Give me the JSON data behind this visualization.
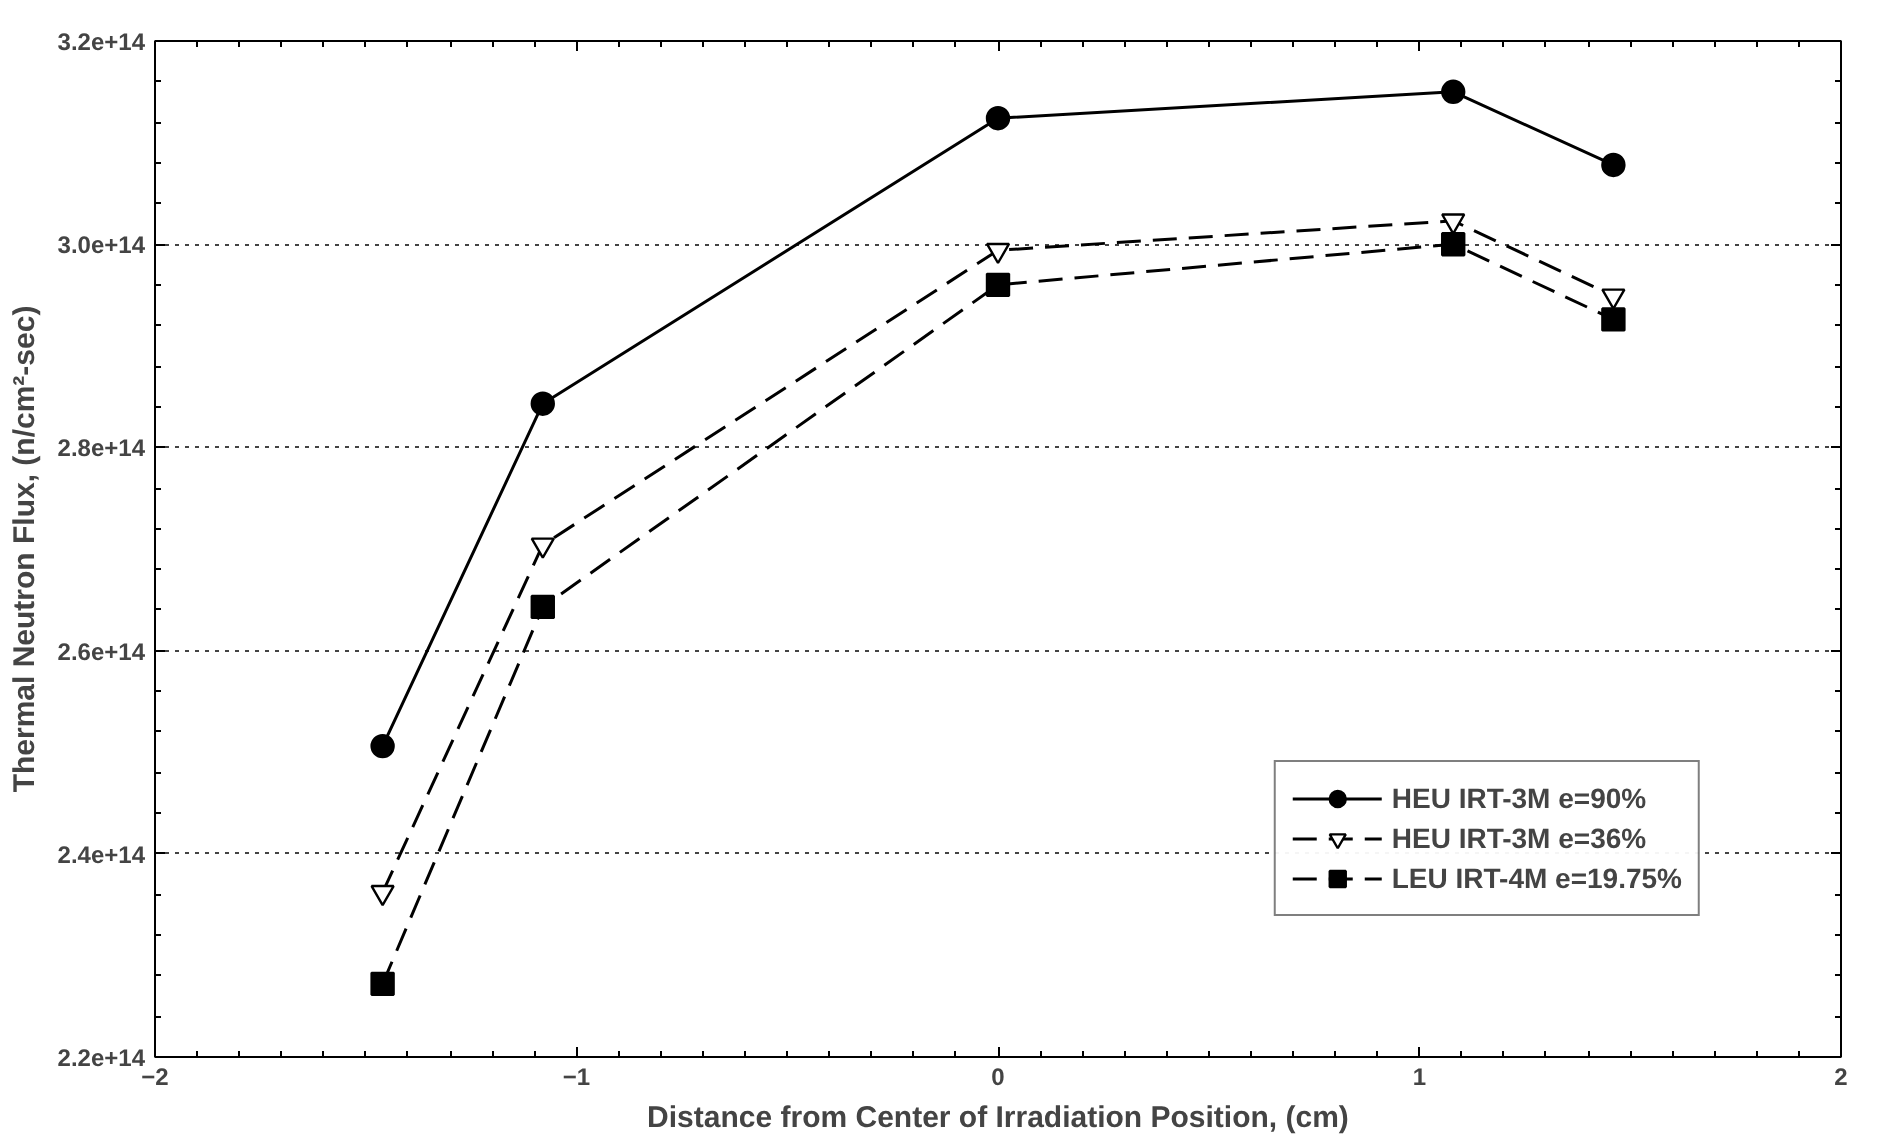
{
  "chart_data": {
    "type": "line",
    "xlabel": "Distance from Center of Irradiation Position, (cm)",
    "ylabel": "Thermal Neutron Flux, (n/cm²-sec)",
    "xlim": [
      -2,
      2
    ],
    "xticks": [
      -2,
      -1,
      0,
      1,
      2
    ],
    "ylim": [
      220000000000000.0,
      320000000000000.0
    ],
    "yticks": [
      {
        "value": 220000000000000.0,
        "label": "2.2e+14"
      },
      {
        "value": 240000000000000.0,
        "label": "2.4e+14"
      },
      {
        "value": 260000000000000.0,
        "label": "2.6e+14"
      },
      {
        "value": 280000000000000.0,
        "label": "2.8e+14"
      },
      {
        "value": 300000000000000.0,
        "label": "3.0e+14"
      },
      {
        "value": 320000000000000.0,
        "label": "3.2e+14"
      }
    ],
    "x": [
      -1.46,
      -1.08,
      0,
      1.08,
      1.46
    ],
    "grid": "y",
    "legend": "bottom right",
    "series": [
      {
        "name": "HEU IRT-3M e=90%",
        "color": "#000000",
        "marker": "circle",
        "line_style": "solid",
        "values": [
          250600000000000.0,
          284300000000000.0,
          312400000000000.0,
          315000000000000.0,
          307800000000000.0
        ]
      },
      {
        "name": "HEU IRT-3M e=36%",
        "color": "#000000",
        "marker": "triangle",
        "line_style": "dashed",
        "values": [
          236200000000000.0,
          270400000000000.0,
          299400000000000.0,
          302300000000000.0,
          294900000000000.0
        ]
      },
      {
        "name": "LEU IRT-4M e=19.75%",
        "color": "#000000",
        "marker": "square",
        "line_style": "dashed",
        "values": [
          227200000000000.0,
          264300000000000.0,
          296000000000000.0,
          300000000000000.0,
          292600000000000.0
        ]
      }
    ]
  }
}
